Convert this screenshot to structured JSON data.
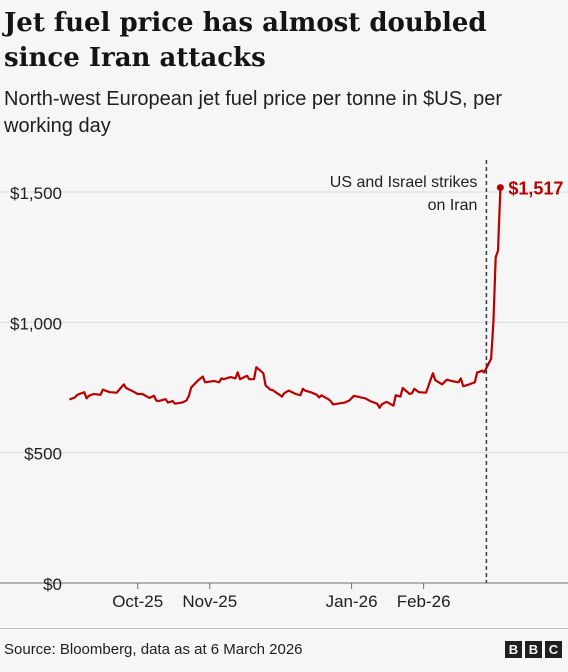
{
  "header": {
    "title": "Jet fuel price has almost doubled since Iran attacks",
    "subtitle": "North-west European jet fuel price per tonne in $US, per working day"
  },
  "footer": {
    "source": "Source: Bloomberg, data as at 6 March 2026",
    "logo_letters": [
      "B",
      "B",
      "C"
    ]
  },
  "colors": {
    "line": "#b80000",
    "text": "#202020",
    "grid": "#dcdcdc",
    "background": "#f6f6f6"
  },
  "chart_data": {
    "type": "line",
    "title": "Jet fuel price has almost doubled since Iran attacks",
    "subtitle": "North-west European jet fuel price per tonne in $US, per working day",
    "xlabel": "",
    "ylabel": "",
    "ylim": [
      0,
      1600
    ],
    "xlim": [
      "2025-09-01",
      "2026-03-08"
    ],
    "y_ticks": [
      {
        "value": 0,
        "label": "$0"
      },
      {
        "value": 500,
        "label": "$500"
      },
      {
        "value": 1000,
        "label": "$1,000"
      },
      {
        "value": 1500,
        "label": "$1,500"
      }
    ],
    "x_ticks": [
      {
        "date": "2025-10-01",
        "label": "Oct-25"
      },
      {
        "date": "2025-11-01",
        "label": "Nov-25"
      },
      {
        "date": "2026-01-01",
        "label": "Jan-26"
      },
      {
        "date": "2026-02-01",
        "label": "Feb-26"
      }
    ],
    "grid": true,
    "legend": "none",
    "series": [
      {
        "points": [
          [
            "2025-09-02",
            705
          ],
          [
            "2025-09-04",
            712
          ],
          [
            "2025-09-05",
            722
          ],
          [
            "2025-09-08",
            732
          ],
          [
            "2025-09-09",
            708
          ],
          [
            "2025-09-10",
            718
          ],
          [
            "2025-09-12",
            725
          ],
          [
            "2025-09-15",
            722
          ],
          [
            "2025-09-16",
            742
          ],
          [
            "2025-09-17",
            738
          ],
          [
            "2025-09-19",
            732
          ],
          [
            "2025-09-22",
            730
          ],
          [
            "2025-09-24",
            752
          ],
          [
            "2025-09-25",
            762
          ],
          [
            "2025-09-26",
            748
          ],
          [
            "2025-09-29",
            735
          ],
          [
            "2025-10-01",
            725
          ],
          [
            "2025-10-03",
            725
          ],
          [
            "2025-10-06",
            710
          ],
          [
            "2025-10-08",
            718
          ],
          [
            "2025-10-09",
            700
          ],
          [
            "2025-10-10",
            698
          ],
          [
            "2025-10-13",
            705
          ],
          [
            "2025-10-14",
            692
          ],
          [
            "2025-10-16",
            698
          ],
          [
            "2025-10-17",
            688
          ],
          [
            "2025-10-20",
            692
          ],
          [
            "2025-10-22",
            700
          ],
          [
            "2025-10-23",
            718
          ],
          [
            "2025-10-24",
            750
          ],
          [
            "2025-10-27",
            778
          ],
          [
            "2025-10-29",
            792
          ],
          [
            "2025-10-30",
            770
          ],
          [
            "2025-11-03",
            775
          ],
          [
            "2025-11-05",
            770
          ],
          [
            "2025-11-06",
            785
          ],
          [
            "2025-11-07",
            782
          ],
          [
            "2025-11-10",
            790
          ],
          [
            "2025-11-12",
            785
          ],
          [
            "2025-11-13",
            808
          ],
          [
            "2025-11-14",
            782
          ],
          [
            "2025-11-17",
            795
          ],
          [
            "2025-11-18",
            782
          ],
          [
            "2025-11-20",
            782
          ],
          [
            "2025-11-21",
            828
          ],
          [
            "2025-11-24",
            805
          ],
          [
            "2025-11-25",
            758
          ],
          [
            "2025-11-27",
            742
          ],
          [
            "2025-11-28",
            740
          ],
          [
            "2025-12-01",
            722
          ],
          [
            "2025-12-02",
            715
          ],
          [
            "2025-12-03",
            728
          ],
          [
            "2025-12-05",
            738
          ],
          [
            "2025-12-08",
            725
          ],
          [
            "2025-12-10",
            720
          ],
          [
            "2025-12-11",
            745
          ],
          [
            "2025-12-12",
            738
          ],
          [
            "2025-12-15",
            730
          ],
          [
            "2025-12-17",
            722
          ],
          [
            "2025-12-18",
            712
          ],
          [
            "2025-12-19",
            720
          ],
          [
            "2025-12-22",
            705
          ],
          [
            "2025-12-23",
            698
          ],
          [
            "2025-12-24",
            685
          ],
          [
            "2025-12-29",
            692
          ],
          [
            "2025-12-31",
            700
          ],
          [
            "2026-01-02",
            718
          ],
          [
            "2026-01-05",
            712
          ],
          [
            "2026-01-07",
            708
          ],
          [
            "2026-01-09",
            698
          ],
          [
            "2026-01-12",
            688
          ],
          [
            "2026-01-13",
            672
          ],
          [
            "2026-01-14",
            685
          ],
          [
            "2026-01-16",
            695
          ],
          [
            "2026-01-19",
            680
          ],
          [
            "2026-01-20",
            720
          ],
          [
            "2026-01-22",
            715
          ],
          [
            "2026-01-23",
            748
          ],
          [
            "2026-01-26",
            725
          ],
          [
            "2026-01-27",
            728
          ],
          [
            "2026-01-28",
            745
          ],
          [
            "2026-01-29",
            738
          ],
          [
            "2026-01-30",
            732
          ],
          [
            "2026-02-02",
            730
          ],
          [
            "2026-02-03",
            755
          ],
          [
            "2026-02-04",
            780
          ],
          [
            "2026-02-05",
            805
          ],
          [
            "2026-02-06",
            778
          ],
          [
            "2026-02-09",
            762
          ],
          [
            "2026-02-10",
            772
          ],
          [
            "2026-02-11",
            780
          ],
          [
            "2026-02-13",
            775
          ],
          [
            "2026-02-16",
            770
          ],
          [
            "2026-02-17",
            785
          ],
          [
            "2026-02-18",
            755
          ],
          [
            "2026-02-20",
            760
          ],
          [
            "2026-02-23",
            770
          ],
          [
            "2026-02-24",
            808
          ],
          [
            "2026-02-25",
            810
          ],
          [
            "2026-02-26",
            815
          ],
          [
            "2026-02-27",
            808
          ],
          [
            "2026-03-02",
            860
          ],
          [
            "2026-03-03",
            1000
          ],
          [
            "2026-03-04",
            1250
          ],
          [
            "2026-03-05",
            1275
          ],
          [
            "2026-03-06",
            1517
          ]
        ]
      }
    ],
    "end_label": "$1,517",
    "annotation": {
      "date": "2026-02-28",
      "lines": [
        "US and Israel strikes",
        "on Iran"
      ]
    }
  }
}
